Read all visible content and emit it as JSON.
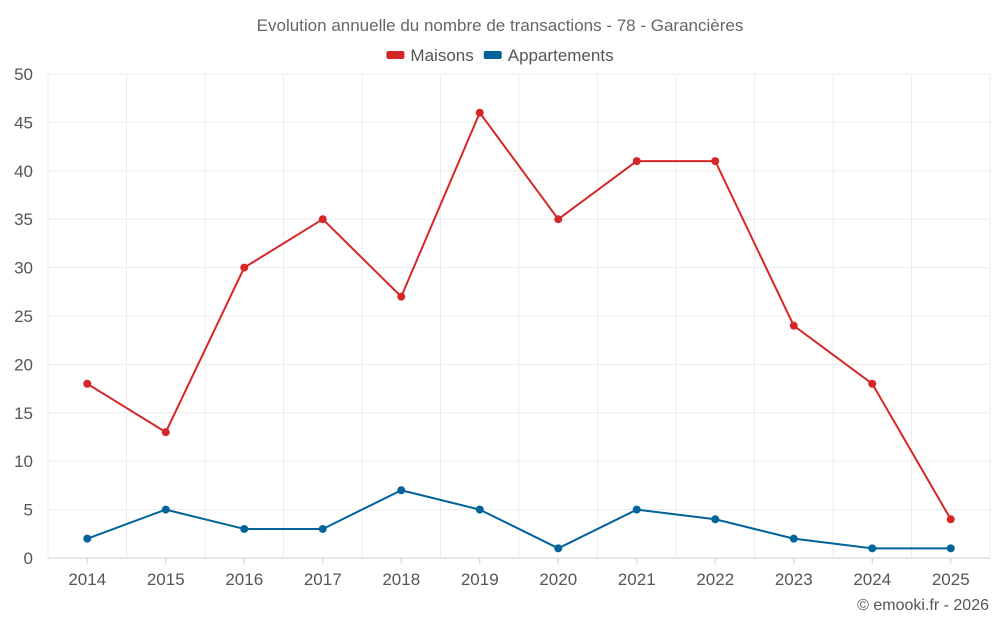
{
  "chart_data": {
    "type": "line",
    "title": "Evolution annuelle du nombre de transactions - 78 - Garancières",
    "xlabel": "",
    "ylabel": "",
    "categories": [
      "2014",
      "2015",
      "2016",
      "2017",
      "2018",
      "2019",
      "2020",
      "2021",
      "2022",
      "2023",
      "2024",
      "2025"
    ],
    "ylim": [
      0,
      50
    ],
    "yticks": [
      0,
      5,
      10,
      15,
      20,
      25,
      30,
      35,
      40,
      45,
      50
    ],
    "grid": true,
    "legend_position": "top-center",
    "series": [
      {
        "name": "Maisons",
        "color": "#d62728",
        "values": [
          18,
          13,
          30,
          35,
          27,
          46,
          35,
          41,
          41,
          24,
          18,
          4
        ]
      },
      {
        "name": "Appartements",
        "color": "#00649a",
        "values": [
          2,
          5,
          3,
          3,
          7,
          5,
          1,
          5,
          4,
          2,
          1,
          1
        ]
      }
    ]
  },
  "footer": "© emooki.fr - 2026"
}
